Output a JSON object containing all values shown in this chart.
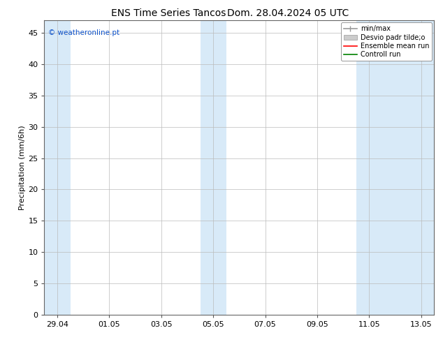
{
  "title_left": "ENS Time Series Tancos",
  "title_right": "Dom. 28.04.2024 05 UTC",
  "ylabel": "Precipitation (mm/6h)",
  "ylim": [
    0,
    47
  ],
  "yticks": [
    0,
    5,
    10,
    15,
    20,
    25,
    30,
    35,
    40,
    45
  ],
  "xtick_labels": [
    "29.04",
    "01.05",
    "03.05",
    "05.05",
    "07.05",
    "09.05",
    "11.05",
    "13.05"
  ],
  "xtick_positions": [
    0,
    2,
    4,
    6,
    8,
    10,
    12,
    14
  ],
  "watermark": "© weatheronline.pt",
  "background_color": "#ffffff",
  "band_color": "#d8eaf8",
  "grid_color": "#bbbbbb",
  "title_fontsize": 10,
  "tick_fontsize": 8,
  "ylabel_fontsize": 8,
  "shaded_ranges": [
    [
      -0.5,
      0.5
    ],
    [
      5.5,
      6.5
    ],
    [
      11.5,
      14.5
    ]
  ]
}
